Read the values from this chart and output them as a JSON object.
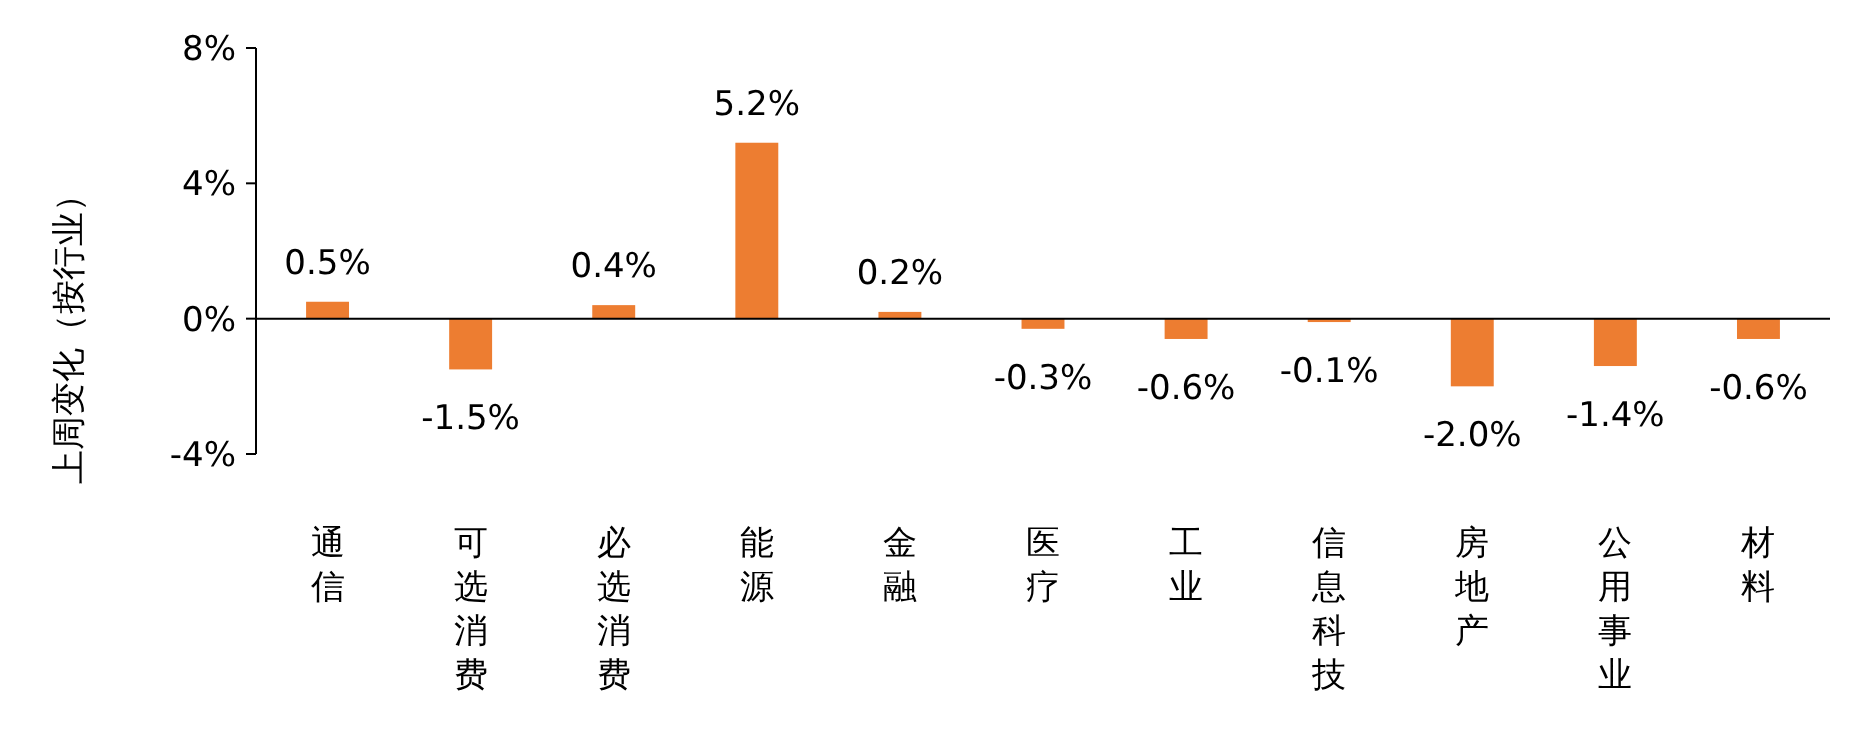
{
  "chart_data": {
    "type": "bar",
    "ylabel": "上周变化（按行业）",
    "categories": [
      "通信",
      "可选消费",
      "必选消费",
      "能源",
      "金融",
      "医疗",
      "工业",
      "信息科技",
      "房地产",
      "公用事业",
      "材料"
    ],
    "values": [
      0.5,
      -1.5,
      0.4,
      5.2,
      0.2,
      -0.3,
      -0.6,
      -0.1,
      -2.0,
      -1.4,
      -0.6
    ],
    "value_labels": [
      "0.5%",
      "-1.5%",
      "0.4%",
      "5.2%",
      "0.2%",
      "-0.3%",
      "-0.6%",
      "-0.1%",
      "-2.0%",
      "-1.4%",
      "-0.6%"
    ],
    "color": "#ed7d31",
    "ylim": [
      -4,
      8
    ],
    "yticks": [
      {
        "value": -4,
        "label": "-4%"
      },
      {
        "value": 0,
        "label": "0%"
      },
      {
        "value": 4,
        "label": "4%"
      },
      {
        "value": 8,
        "label": "8%"
      }
    ]
  }
}
